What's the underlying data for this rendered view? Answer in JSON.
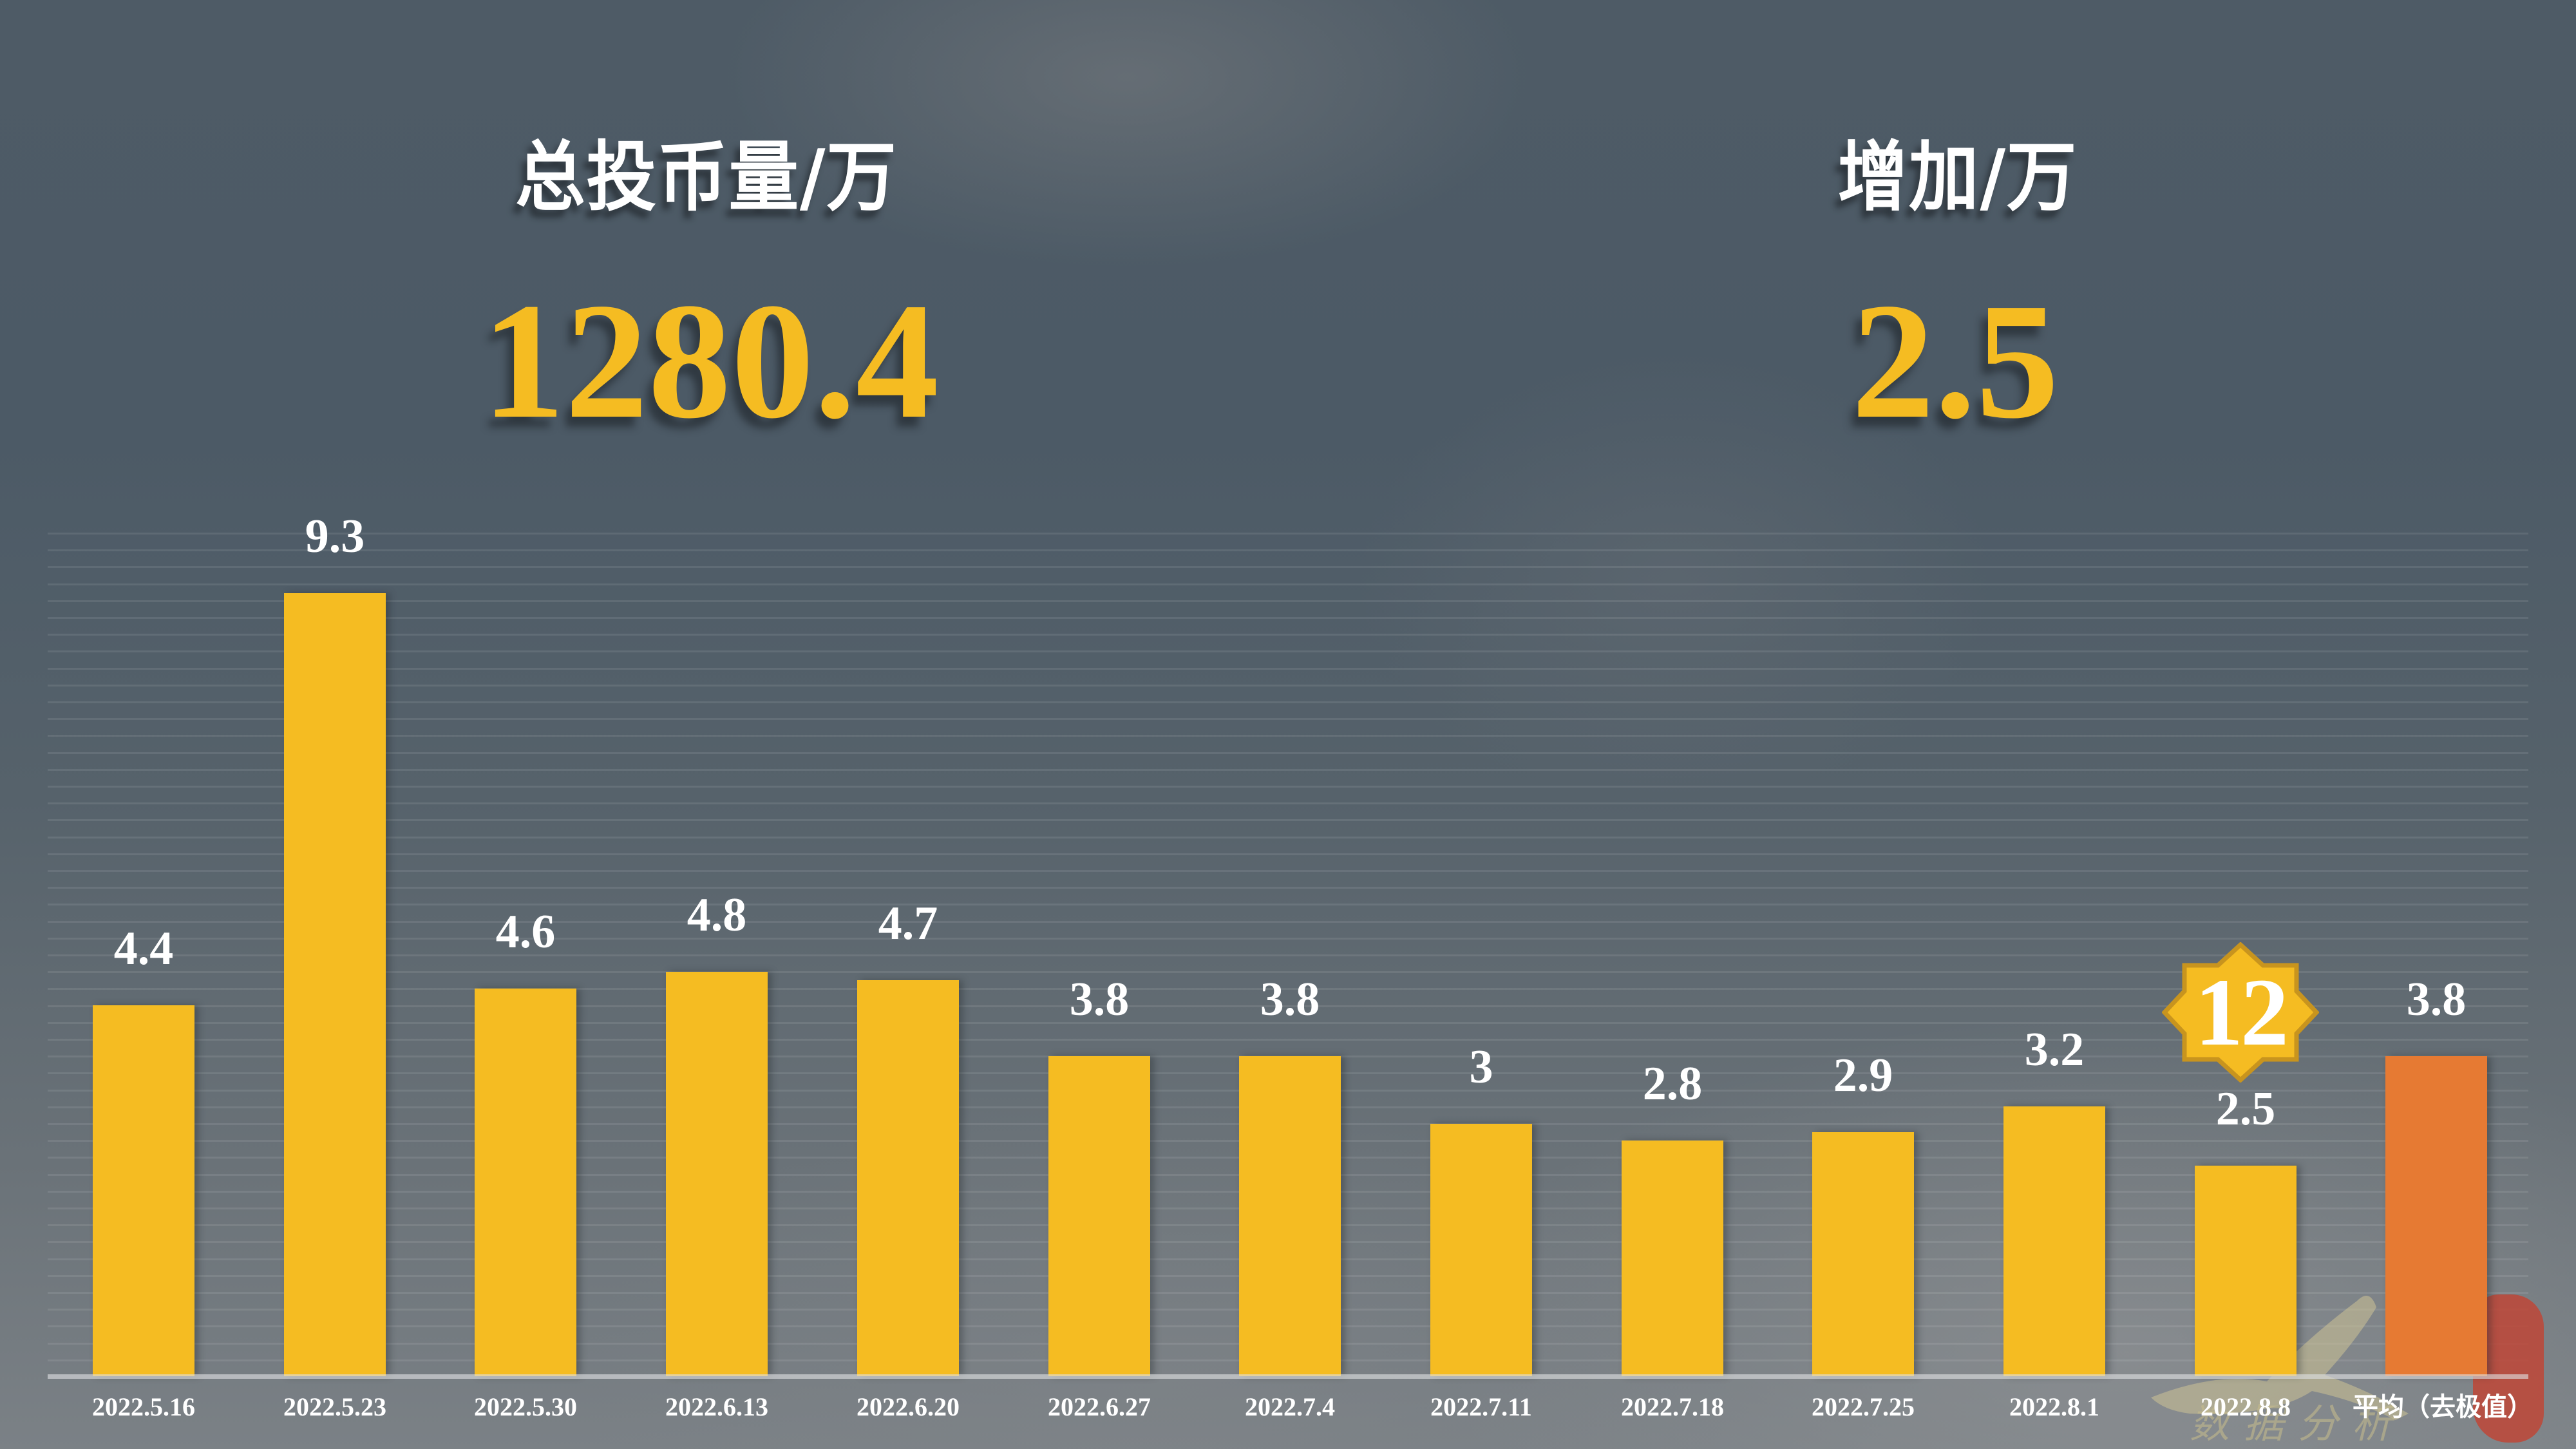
{
  "kpis": [
    {
      "title": "总投币量/万",
      "value": "1280.4"
    },
    {
      "title": "增加/万",
      "value": "2.5"
    }
  ],
  "badge": {
    "value": "12",
    "shape": "eight-point-star",
    "fill": "#F5BC22",
    "stroke": "#C8941E"
  },
  "watermark": {
    "text": "数据分析",
    "seal_text": ""
  },
  "colors": {
    "bar": "#F5BC22",
    "highlight_bar": "#E67A33",
    "label": "#FFFFFF",
    "kpi_value": "#F5BC22"
  },
  "chart_data": {
    "type": "bar",
    "title": "",
    "xlabel": "",
    "ylabel": "",
    "categories": [
      "2022.5.16",
      "2022.5.23",
      "2022.5.30",
      "2022.6.13",
      "2022.6.20",
      "2022.6.27",
      "2022.7.4",
      "2022.7.11",
      "2022.7.18",
      "2022.7.25",
      "2022.8.1",
      "2022.8.8",
      "平均（去极值）"
    ],
    "values": [
      4.4,
      9.3,
      4.6,
      4.8,
      4.7,
      3.8,
      3.8,
      3,
      2.8,
      2.9,
      3.2,
      2.5,
      3.8
    ],
    "value_labels": [
      "4.4",
      "9.3",
      "4.6",
      "4.8",
      "4.7",
      "3.8",
      "3.8",
      "3",
      "2.8",
      "2.9",
      "3.2",
      "2.5",
      "3.8"
    ],
    "highlight_index": 12,
    "bar_colors": [
      "#F5BC22",
      "#F5BC22",
      "#F5BC22",
      "#F5BC22",
      "#F5BC22",
      "#F5BC22",
      "#F5BC22",
      "#F5BC22",
      "#F5BC22",
      "#F5BC22",
      "#F5BC22",
      "#F5BC22",
      "#E67A33"
    ],
    "ylim": [
      0,
      10
    ],
    "grid": true,
    "legend": "none",
    "data_labels": true
  }
}
